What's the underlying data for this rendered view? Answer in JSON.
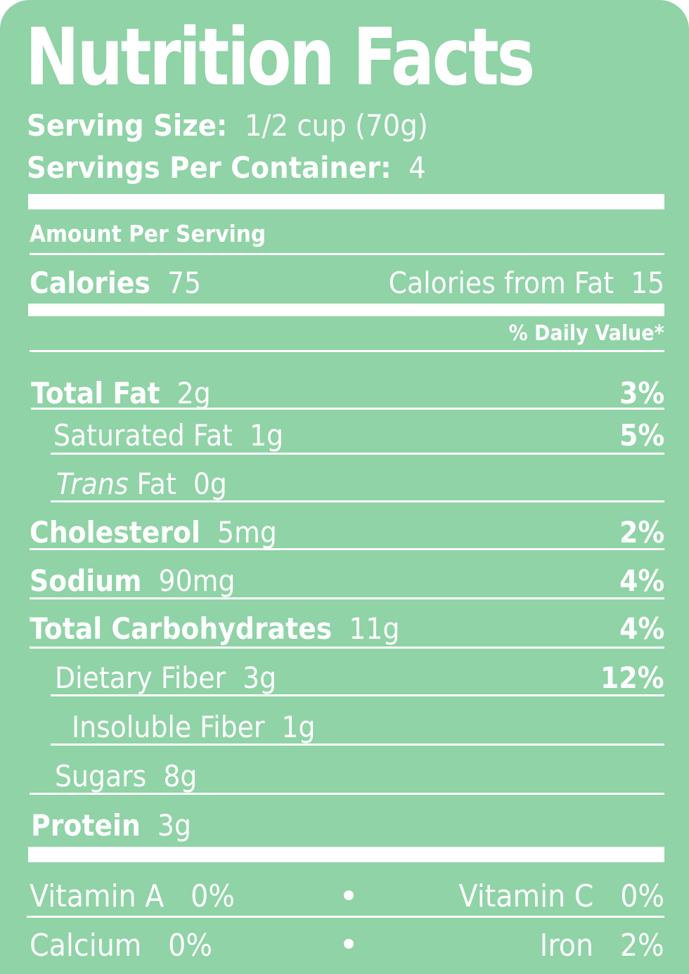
{
  "title": "Nutrition Facts",
  "serving_size": {
    "label": "Serving Size:",
    "value": "1/2 cup (70g)"
  },
  "servings_per_container": {
    "label": "Servings Per Container:",
    "value": "4"
  },
  "amount_per_serving": "Amount Per Serving",
  "calories": {
    "label": "Calories",
    "value": "75"
  },
  "calories_from_fat": {
    "label": "Calories from Fat",
    "value": "15"
  },
  "daily_value_header": "% Daily Value*",
  "nutrients": [
    {
      "label": "Total Fat",
      "amount": "2g",
      "dv": "3%"
    },
    {
      "label": "Saturated Fat",
      "amount": "1g",
      "dv": "5%"
    },
    {
      "label_italic": "Trans",
      "label": "Fat",
      "amount": "0g",
      "dv": ""
    },
    {
      "label": "Cholesterol",
      "amount": "5mg",
      "dv": "2%"
    },
    {
      "label": "Sodium",
      "amount": "90mg",
      "dv": "4%"
    },
    {
      "label": "Total Carbohydrates",
      "amount": "11g",
      "dv": "4%"
    },
    {
      "label": "Dietary Fiber",
      "amount": "3g",
      "dv": "12%"
    },
    {
      "label": "Insoluble Fiber",
      "amount": "1g",
      "dv": ""
    },
    {
      "label": "Sugars",
      "amount": "8g",
      "dv": ""
    },
    {
      "label": "Protein",
      "amount": "3g",
      "dv": ""
    }
  ],
  "vitamins": [
    {
      "label": "Vitamin A",
      "value": "0%"
    },
    {
      "label": "Vitamin C",
      "value": "0%"
    },
    {
      "label": "Calcium",
      "value": "0%"
    },
    {
      "label": "Iron",
      "value": "2%"
    }
  ],
  "colors": {
    "background": "#8fd3a6",
    "text": "#ffffff"
  }
}
